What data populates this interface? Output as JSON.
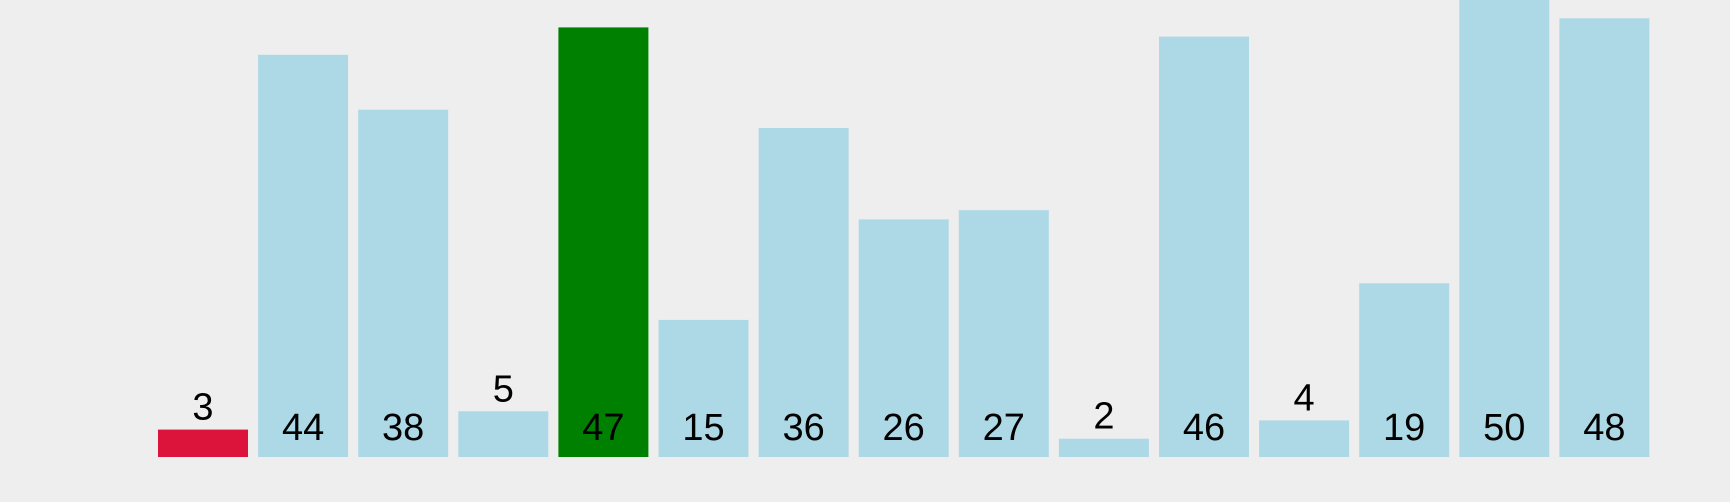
{
  "chart_data": {
    "type": "bar",
    "values": [
      3,
      44,
      38,
      5,
      47,
      15,
      36,
      26,
      27,
      2,
      46,
      4,
      19,
      50,
      48
    ],
    "labels": [
      "3",
      "44",
      "38",
      "5",
      "47",
      "15",
      "36",
      "26",
      "27",
      "2",
      "46",
      "4",
      "19",
      "50",
      "48"
    ],
    "highlights": {
      "red_index": 0,
      "green_index": 4
    },
    "ylim": [
      0,
      50
    ],
    "grid": false,
    "legend": "none"
  },
  "colors": {
    "background": "#eeeeee",
    "bar_default": "#add8e6",
    "bar_red": "#dc143c",
    "bar_green": "#008000",
    "label": "#000000"
  }
}
